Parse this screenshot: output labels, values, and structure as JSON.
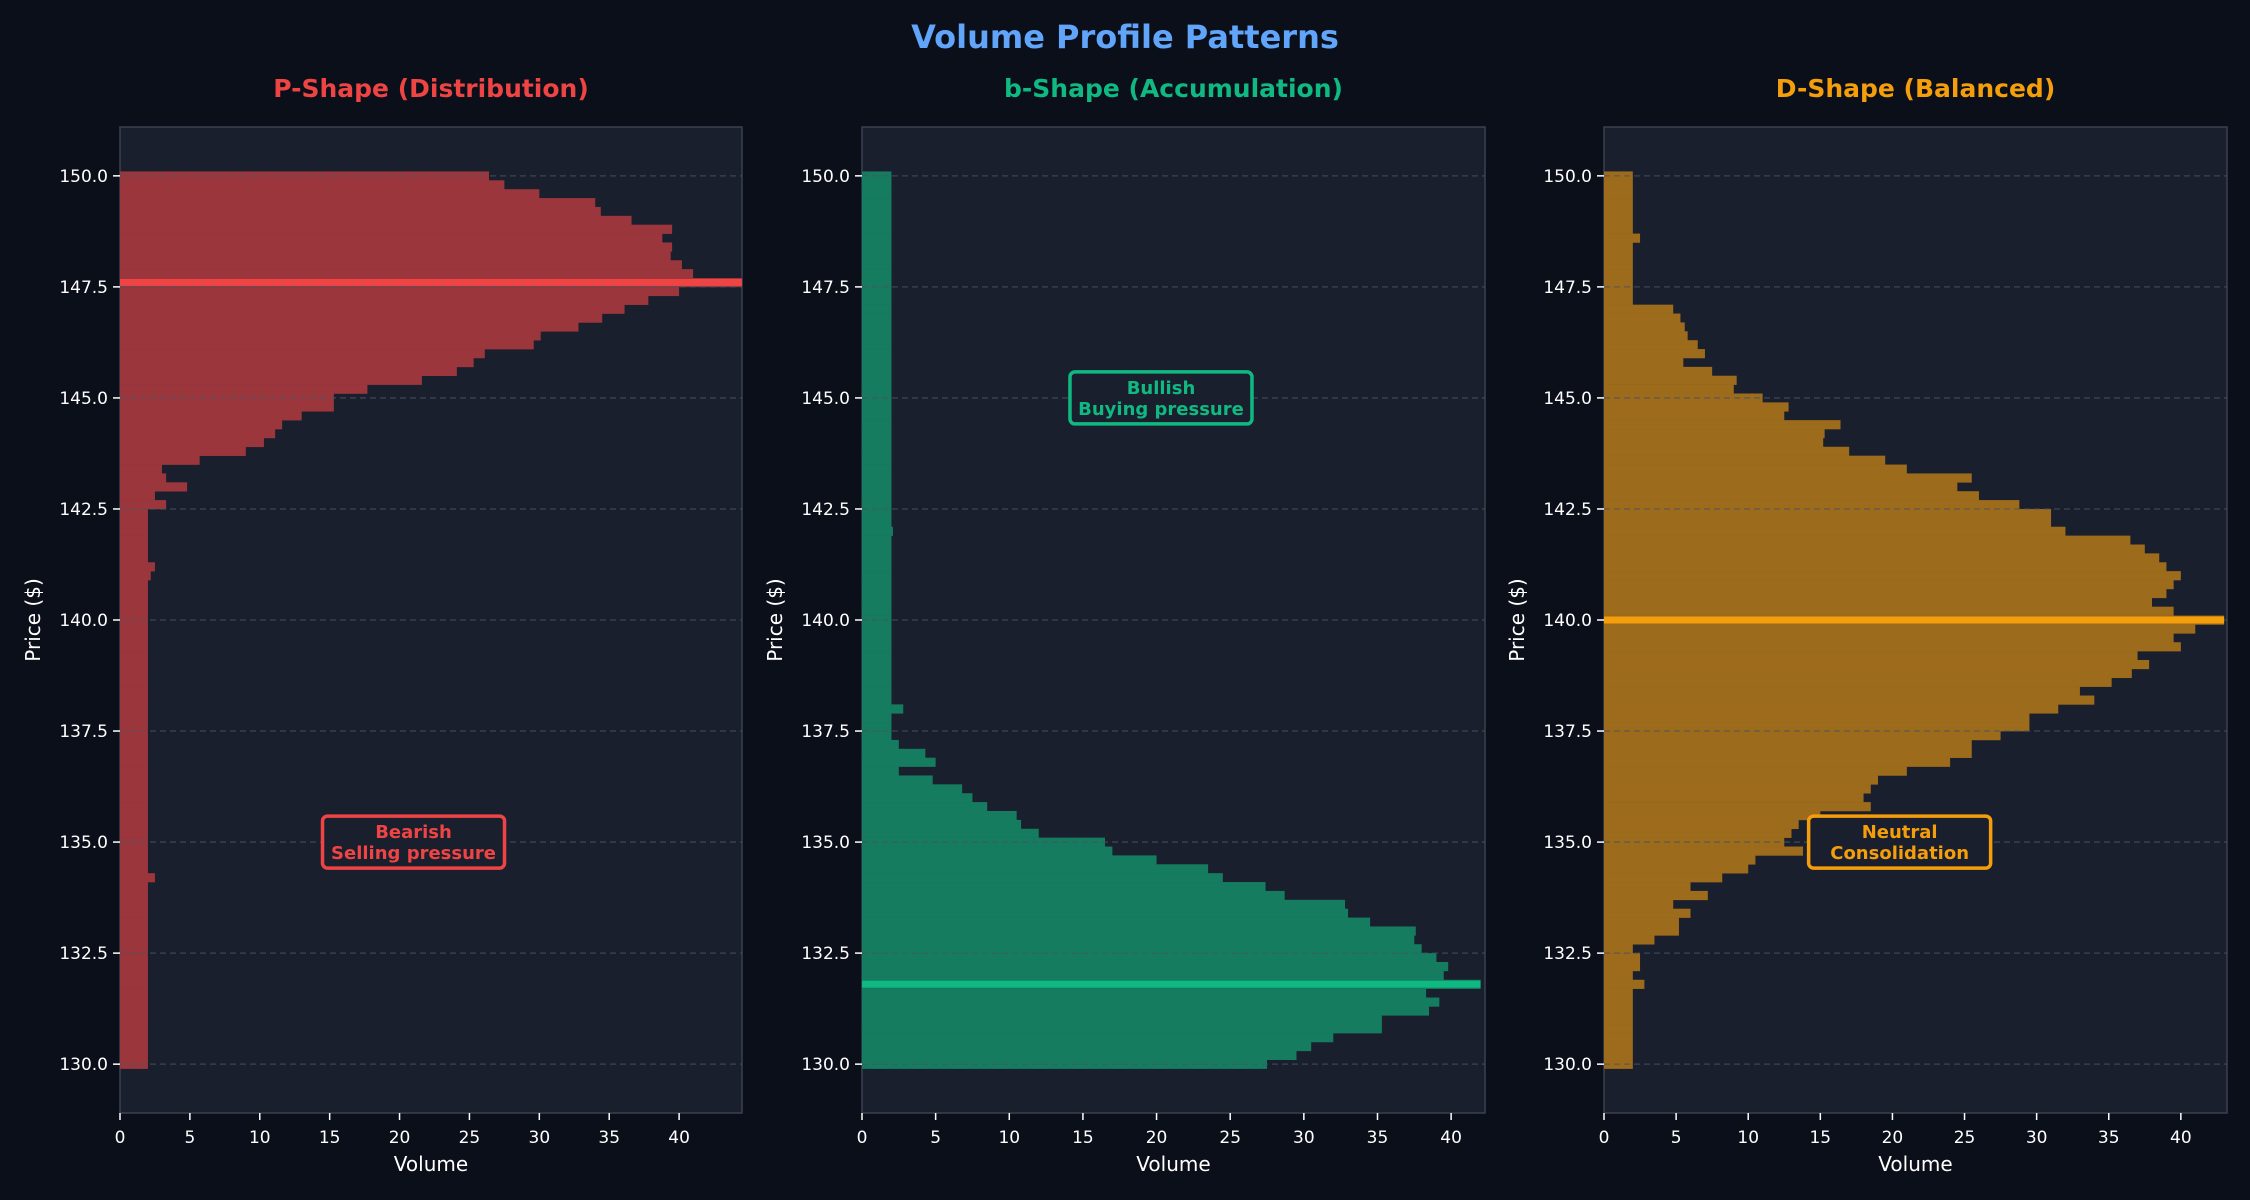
{
  "title": "Volume Profile Patterns",
  "colors": {
    "background": "#0b0f1a",
    "axes_background": "#1a1f2e",
    "title": "#60a5fa",
    "text": "#ffffff",
    "grid": "#4b5563"
  },
  "price_levels": [
    130.0,
    130.2,
    130.4,
    130.6,
    130.8,
    131.0,
    131.2,
    131.4,
    131.6,
    131.8,
    132.0,
    132.2,
    132.4,
    132.6,
    132.8,
    133.0,
    133.2,
    133.4,
    133.6,
    133.8,
    134.0,
    134.2,
    134.4,
    134.6,
    134.8,
    135.0,
    135.2,
    135.4,
    135.6,
    135.8,
    136.0,
    136.2,
    136.4,
    136.6,
    136.8,
    137.0,
    137.2,
    137.4,
    137.6,
    137.8,
    138.0,
    138.2,
    138.4,
    138.6,
    138.8,
    139.0,
    139.2,
    139.4,
    139.6,
    139.8,
    140.0,
    140.2,
    140.4,
    140.6,
    140.8,
    141.0,
    141.2,
    141.4,
    141.6,
    141.8,
    142.0,
    142.2,
    142.4,
    142.6,
    142.8,
    143.0,
    143.2,
    143.4,
    143.6,
    143.8,
    144.0,
    144.2,
    144.4,
    144.6,
    144.8,
    145.0,
    145.2,
    145.4,
    145.6,
    145.8,
    146.0,
    146.2,
    146.4,
    146.6,
    146.8,
    147.0,
    147.2,
    147.4,
    147.6,
    147.8,
    148.0,
    148.2,
    148.4,
    148.6,
    148.8,
    149.0,
    149.2,
    149.4,
    149.6,
    149.8,
    150.0
  ],
  "chart_data": [
    {
      "type": "bar",
      "orientation": "horizontal",
      "title": "P-Shape (Distribution)",
      "xlabel": "Volume",
      "ylabel": "Price ($)",
      "color": "#ef4444",
      "bar_color": "#9b363d",
      "xlim": [
        0,
        44.5
      ],
      "ylim": [
        128.9,
        151.1
      ],
      "xticks": [
        "0",
        "5",
        "10",
        "15",
        "20",
        "25",
        "30",
        "35",
        "40"
      ],
      "yticks": [
        "130.0",
        "132.5",
        "135.0",
        "137.5",
        "140.0",
        "142.5",
        "145.0",
        "147.5",
        "150.0"
      ],
      "grid": "horizontal dashed",
      "poc_price": 147.6,
      "annotation": {
        "lines": [
          "Bearish",
          "Selling pressure"
        ],
        "volume": 21,
        "price": 135.0
      },
      "values": [
        2,
        2,
        2,
        2,
        2,
        2,
        2,
        2,
        2,
        2,
        2,
        2,
        2,
        2,
        2,
        2,
        2,
        2,
        2,
        2,
        2,
        2.5,
        2,
        2,
        2,
        2,
        2,
        2,
        2,
        2,
        2,
        2,
        2,
        2,
        2,
        2,
        2,
        2,
        2,
        2,
        2,
        2,
        2,
        2,
        2,
        2,
        2,
        2,
        2,
        2,
        2,
        2,
        2,
        2,
        2,
        2.2,
        2.5,
        2,
        2,
        2,
        2,
        2,
        2,
        3.3,
        2.5,
        4.8,
        3.3,
        3.0,
        5.7,
        9,
        10.3,
        11.1,
        11.6,
        13,
        15.3,
        15.3,
        17.7,
        21.6,
        24.1,
        25.3,
        26.1,
        29.6,
        30.1,
        32.8,
        34.5,
        36.1,
        37.8,
        40,
        44.5,
        41.0,
        40.2,
        39.4,
        39.5,
        38.8,
        39.5,
        36.6,
        34.4,
        34.0,
        30.0,
        27.5,
        26.4
      ]
    },
    {
      "type": "bar",
      "orientation": "horizontal",
      "title": "b-Shape (Accumulation)",
      "xlabel": "Volume",
      "ylabel": "Price ($)",
      "color": "#10b981",
      "bar_color": "#157c60",
      "xlim": [
        0,
        42.3
      ],
      "ylim": [
        128.9,
        151.1
      ],
      "xticks": [
        "0",
        "5",
        "10",
        "15",
        "20",
        "25",
        "30",
        "35",
        "40"
      ],
      "yticks": [
        "130.0",
        "132.5",
        "135.0",
        "137.5",
        "140.0",
        "142.5",
        "145.0",
        "147.5",
        "150.0"
      ],
      "grid": "horizontal dashed",
      "poc_price": 131.8,
      "annotation": {
        "lines": [
          "Bullish",
          "Buying pressure"
        ],
        "volume": 20.3,
        "price": 145.0
      },
      "values": [
        27.5,
        29.5,
        30.5,
        32,
        35.3,
        35.3,
        38.5,
        39.2,
        38.3,
        42,
        39.5,
        39.8,
        39,
        38,
        37.5,
        37.6,
        34.5,
        33,
        32.8,
        28.7,
        27.4,
        24.5,
        23.5,
        20,
        17,
        16.5,
        12,
        10.8,
        10.5,
        8.5,
        7.5,
        6.8,
        4.8,
        2.5,
        5,
        4.3,
        2.5,
        2,
        2,
        2,
        2.8,
        2,
        2,
        2,
        2,
        2,
        2,
        2,
        2,
        2,
        2,
        2,
        2,
        2,
        2,
        2,
        2,
        2,
        2,
        2,
        2.1,
        2,
        2,
        2,
        2,
        2,
        2,
        2,
        2,
        2,
        2,
        2,
        2,
        2,
        2,
        2,
        2,
        2,
        2,
        2,
        2,
        2,
        2,
        2,
        2,
        2,
        2,
        2,
        2,
        2,
        2,
        2,
        2,
        2,
        2,
        2,
        2,
        2,
        2,
        2,
        2
      ]
    },
    {
      "type": "bar",
      "orientation": "horizontal",
      "title": "D-Shape (Balanced)",
      "xlabel": "Volume",
      "ylabel": "Price ($)",
      "color": "#f59e0b",
      "bar_color": "#9c6b1b",
      "xlim": [
        0,
        43.2
      ],
      "ylim": [
        128.9,
        151.1
      ],
      "xticks": [
        "0",
        "5",
        "10",
        "15",
        "20",
        "25",
        "30",
        "35",
        "40"
      ],
      "yticks": [
        "130.0",
        "132.5",
        "135.0",
        "137.5",
        "140.0",
        "142.5",
        "145.0",
        "147.5",
        "150.0"
      ],
      "grid": "horizontal dashed",
      "poc_price": 140.0,
      "annotation": {
        "lines": [
          "Neutral",
          "Consolidation"
        ],
        "volume": 20.5,
        "price": 135.0
      },
      "values": [
        2,
        2,
        2,
        2,
        2,
        2,
        2,
        2,
        2,
        2.8,
        2,
        2.5,
        2.5,
        2,
        3.5,
        5.2,
        5.2,
        6,
        4.8,
        7.2,
        6,
        8.2,
        10,
        10.5,
        13.8,
        12.5,
        13,
        13.5,
        15,
        18.5,
        18,
        18.5,
        19,
        21,
        24,
        25.5,
        25.5,
        27.5,
        29.5,
        29.5,
        31.5,
        34,
        33,
        35.2,
        36.6,
        37.8,
        37,
        40,
        39.5,
        41,
        43,
        39.5,
        38,
        39,
        39.5,
        40,
        39,
        38.5,
        37.5,
        36.5,
        32,
        31,
        31,
        28.8,
        26,
        24.5,
        25.5,
        21,
        19.5,
        17,
        15.2,
        15.3,
        16.4,
        12.5,
        12.8,
        11,
        9,
        9.2,
        7.5,
        5.5,
        7,
        6.5,
        5.8,
        5.6,
        5.3,
        4.8,
        2,
        2,
        2,
        2,
        2,
        2,
        2,
        2.5,
        2,
        2,
        2,
        2,
        2,
        2,
        2
      ]
    }
  ]
}
